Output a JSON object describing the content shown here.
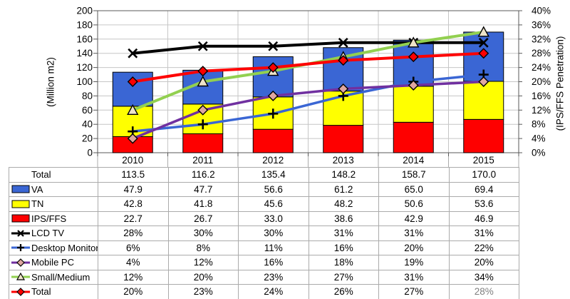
{
  "chart_data": {
    "type": "combo-stacked-bar-line",
    "categories": [
      "2010",
      "2011",
      "2012",
      "2013",
      "2014",
      "2015"
    ],
    "left_axis": {
      "title": "(Million m2)",
      "min": 0,
      "max": 200,
      "step": 20
    },
    "right_axis": {
      "title": "(IPS/FFS Penetration)",
      "min": 0,
      "max": 40,
      "step": 4,
      "suffix": "%"
    },
    "grid": true,
    "bar_series": [
      {
        "name": "IPS/FFS",
        "color": "#FE0000",
        "values": [
          22.7,
          26.7,
          33.0,
          38.6,
          42.9,
          46.9
        ]
      },
      {
        "name": "TN",
        "color": "#FFFF00",
        "values": [
          42.8,
          41.8,
          45.6,
          48.2,
          50.6,
          53.6
        ]
      },
      {
        "name": "VA",
        "color": "#3A66D4",
        "values": [
          47.9,
          47.7,
          56.6,
          61.2,
          65.0,
          69.4
        ]
      }
    ],
    "bar_total": {
      "name": "Total",
      "values": [
        113.5,
        116.2,
        135.4,
        148.2,
        158.7,
        170.0
      ]
    },
    "line_series": [
      {
        "name": "LCD TV",
        "color": "#000000",
        "width": 4,
        "marker": "x",
        "marker_fill": "#000000",
        "values": [
          28,
          30,
          30,
          31,
          31,
          31
        ]
      },
      {
        "name": "Desktop Monitor",
        "color": "#3A66D4",
        "width": 3.5,
        "marker": "plus",
        "marker_fill": "#000000",
        "values": [
          6,
          8,
          11,
          16,
          20,
          22
        ]
      },
      {
        "name": "Mobile PC",
        "color": "#7030A0",
        "width": 3.5,
        "marker": "diamond",
        "marker_fill": "#DFA7A0",
        "values": [
          4,
          12,
          16,
          18,
          19,
          20
        ]
      },
      {
        "name": "Small/Medium",
        "color": "#92D050",
        "width": 4,
        "marker": "triangle",
        "marker_fill": "#EDE3C8",
        "values": [
          12,
          20,
          23,
          27,
          31,
          34
        ]
      },
      {
        "name": "Total",
        "color": "#FE0000",
        "width": 4,
        "marker": "diamond",
        "marker_fill": "#FE0000",
        "values": [
          20,
          23,
          24,
          26,
          27,
          28
        ]
      }
    ]
  },
  "table": {
    "muted_color": "#7F7F7F",
    "rows": [
      {
        "label": "Total",
        "swatch": "none",
        "values": [
          "113.5",
          "116.2",
          "135.4",
          "148.2",
          "158.7",
          "170.0"
        ]
      },
      {
        "label": "VA",
        "swatch": "bar",
        "color": "#3A66D4",
        "values": [
          "47.9",
          "47.7",
          "56.6",
          "61.2",
          "65.0",
          "69.4"
        ]
      },
      {
        "label": "TN",
        "swatch": "bar",
        "color": "#FFFF00",
        "values": [
          "42.8",
          "41.8",
          "45.6",
          "48.2",
          "50.6",
          "53.6"
        ]
      },
      {
        "label": "IPS/FFS",
        "swatch": "bar",
        "color": "#FE0000",
        "values": [
          "22.7",
          "26.7",
          "33.0",
          "38.6",
          "42.9",
          "46.9"
        ]
      },
      {
        "label": "LCD TV",
        "swatch": "line",
        "color": "#000000",
        "marker": "x",
        "marker_fill": "#000000",
        "values": [
          "28%",
          "30%",
          "30%",
          "31%",
          "31%",
          "31%"
        ]
      },
      {
        "label": "Desktop Monitor",
        "swatch": "line",
        "color": "#3A66D4",
        "marker": "plus",
        "marker_fill": "#000000",
        "values": [
          "6%",
          "8%",
          "11%",
          "16%",
          "20%",
          "22%"
        ]
      },
      {
        "label": "Mobile PC",
        "swatch": "line",
        "color": "#7030A0",
        "marker": "diamond",
        "marker_fill": "#DFA7A0",
        "values": [
          "4%",
          "12%",
          "16%",
          "18%",
          "19%",
          "20%"
        ]
      },
      {
        "label": "Small/Medium",
        "swatch": "line",
        "color": "#92D050",
        "marker": "triangle",
        "marker_fill": "#EDE3C8",
        "values": [
          "12%",
          "20%",
          "23%",
          "27%",
          "31%",
          "34%"
        ]
      },
      {
        "label": "Total",
        "swatch": "line",
        "color": "#FE0000",
        "marker": "diamond",
        "marker_fill": "#FE0000",
        "values": [
          "20%",
          "23%",
          "24%",
          "26%",
          "27%",
          "28%"
        ],
        "last_value_muted": true
      }
    ]
  }
}
